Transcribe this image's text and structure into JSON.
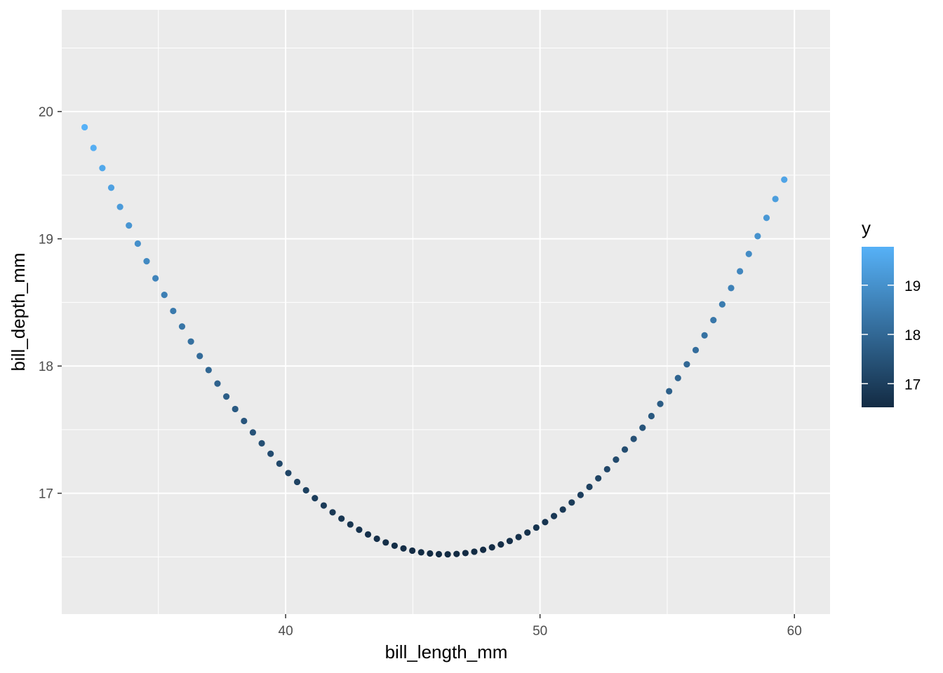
{
  "chart_data": {
    "type": "scatter",
    "xlabel": "bill_length_mm",
    "ylabel": "bill_depth_mm",
    "xlim": [
      31.2,
      61.4
    ],
    "ylim": [
      16.05,
      20.8
    ],
    "x_ticks": [
      40,
      50,
      60
    ],
    "x_tick_labels": [
      "40",
      "50",
      "60"
    ],
    "y_ticks": [
      17,
      18,
      19,
      20
    ],
    "y_tick_labels": [
      "17",
      "18",
      "19",
      "20"
    ],
    "x_range": [
      32.1,
      59.6
    ],
    "n_points": 80,
    "curve": {
      "description": "quadratic fit",
      "vertex_x": 46.3,
      "vertex_y": 16.52,
      "coefficient": 0.01665
    },
    "grid": true,
    "panel_background": "#ebebeb",
    "color_scale": {
      "variable": "y",
      "low_color": "#132b43",
      "high_color": "#56b1f7",
      "limits": [
        16.52,
        19.78
      ],
      "breaks": [
        17,
        18,
        19
      ],
      "break_labels": [
        "17",
        "18",
        "19"
      ]
    },
    "legend": {
      "title": "y",
      "position": "right"
    }
  }
}
